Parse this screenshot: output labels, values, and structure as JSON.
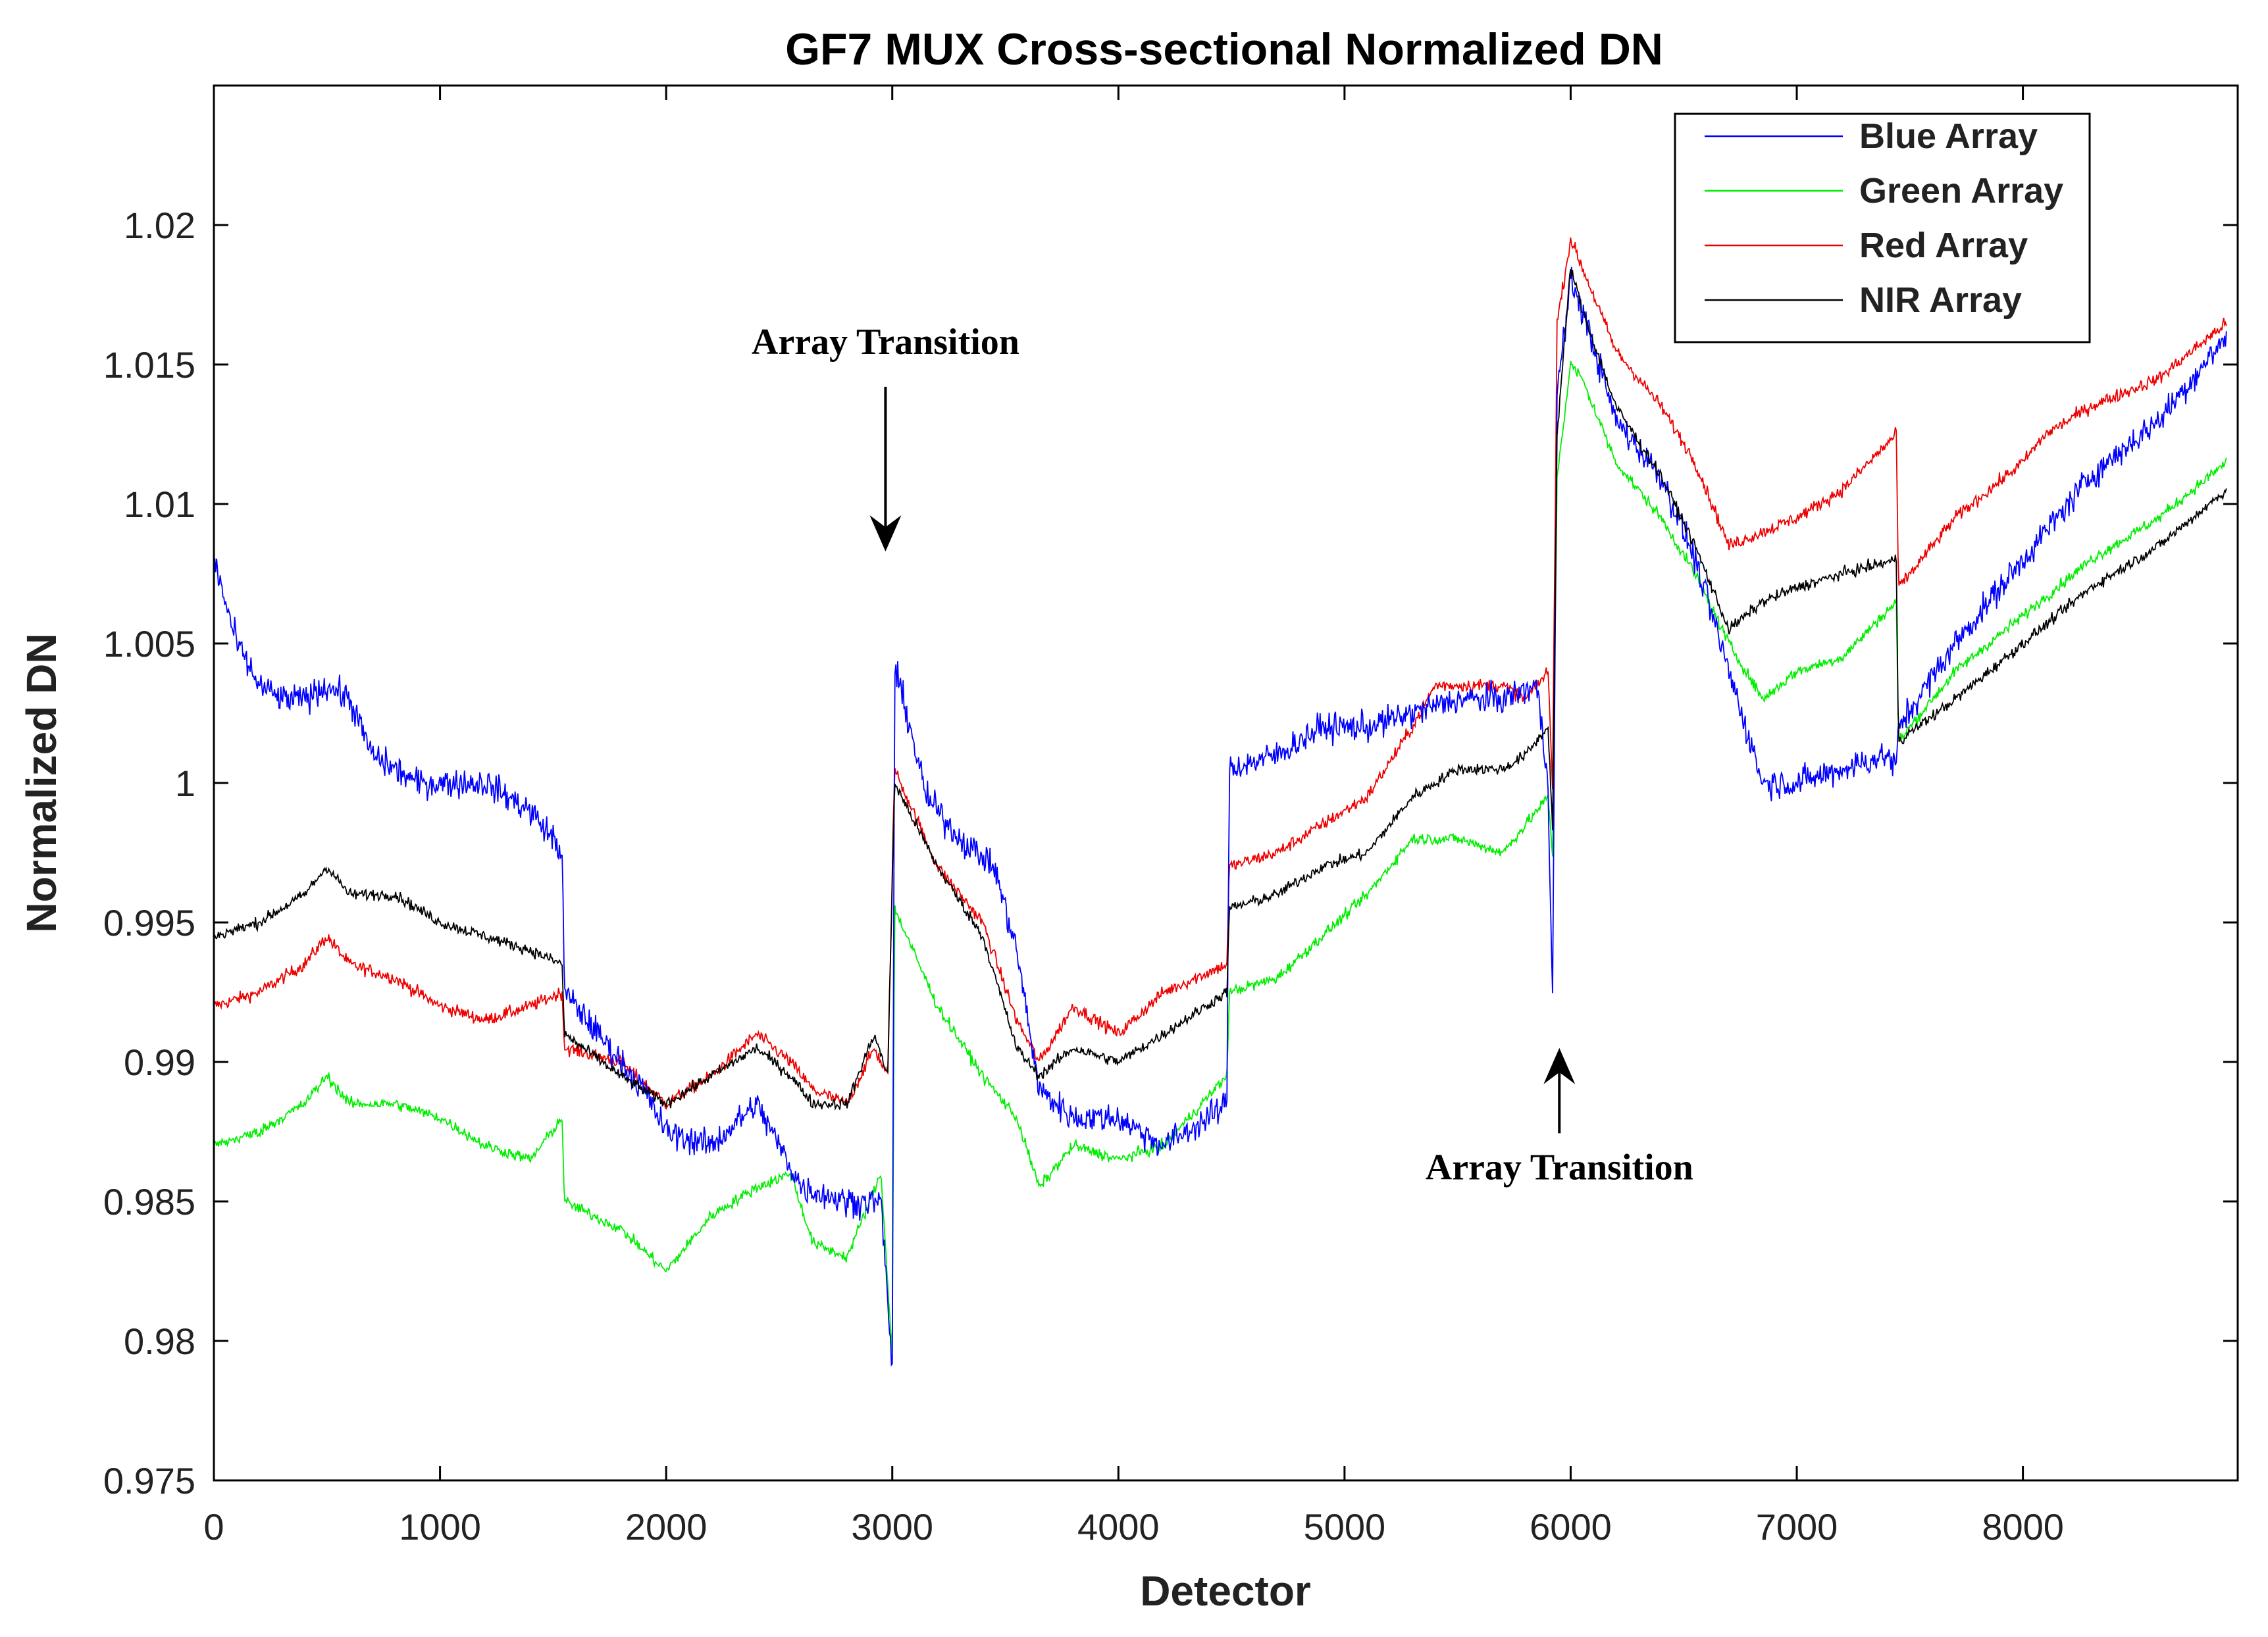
{
  "chart_data": {
    "type": "line",
    "title": "GF7 MUX Cross-sectional Normalized DN",
    "xlabel": "Detector",
    "ylabel": "Normalized DN",
    "xlim": [
      0,
      8950
    ],
    "ylim": [
      0.975,
      1.025
    ],
    "xticks": [
      0,
      1000,
      2000,
      3000,
      4000,
      5000,
      6000,
      7000,
      8000
    ],
    "xtick_labels": [
      "0",
      "1000",
      "2000",
      "3000",
      "4000",
      "5000",
      "6000",
      "7000",
      "8000"
    ],
    "yticks": [
      0.975,
      0.98,
      0.985,
      0.99,
      0.995,
      1.0,
      1.005,
      1.01,
      1.015,
      1.02
    ],
    "ytick_labels": [
      "0.975",
      "0.98",
      "0.985",
      "0.99",
      "0.995",
      "1",
      "1.005",
      "1.01",
      "1.015",
      "1.02"
    ],
    "legend_position": "top-right",
    "series": [
      {
        "name": "Blue Array",
        "color": "#0000ff",
        "x": [
          0,
          100,
          200,
          300,
          400,
          500,
          600,
          700,
          800,
          900,
          1000,
          1100,
          1200,
          1300,
          1400,
          1500,
          1540,
          1550,
          1700,
          1900,
          2000,
          2200,
          2400,
          2600,
          2800,
          2950,
          3000,
          3010,
          3050,
          3150,
          3300,
          3450,
          3550,
          3650,
          3800,
          4000,
          4200,
          4400,
          4480,
          4490,
          4700,
          4900,
          5100,
          5300,
          5500,
          5700,
          5850,
          5900,
          5920,
          5940,
          6000,
          6050,
          6200,
          6400,
          6550,
          6700,
          6850,
          7000,
          7200,
          7400,
          7440,
          7450,
          7700,
          8000,
          8300,
          8600,
          8900
        ],
        "values": [
          1.008,
          1.005,
          1.0035,
          1.003,
          1.003,
          1.0035,
          1.003,
          1.001,
          1.0005,
          1.0,
          1.0,
          1.0,
          1.0,
          0.9995,
          0.999,
          0.998,
          0.9975,
          0.9925,
          0.991,
          0.989,
          0.9875,
          0.987,
          0.9885,
          0.9855,
          0.985,
          0.985,
          0.979,
          1.004,
          1.003,
          0.9995,
          0.998,
          0.997,
          0.994,
          0.989,
          0.988,
          0.988,
          0.987,
          0.988,
          0.9885,
          1.0005,
          1.001,
          1.002,
          1.002,
          1.0025,
          1.003,
          1.003,
          1.0035,
          1.0,
          0.9925,
          1.014,
          1.018,
          1.017,
          1.013,
          1.011,
          1.008,
          1.004,
          1.0,
          1.0,
          1.0005,
          1.001,
          1.0005,
          1.002,
          1.005,
          1.008,
          1.011,
          1.013,
          1.016
        ]
      },
      {
        "name": "Green Array",
        "color": "#00ee00",
        "x": [
          0,
          200,
          400,
          500,
          600,
          800,
          1000,
          1200,
          1400,
          1540,
          1550,
          1800,
          2000,
          2200,
          2400,
          2550,
          2650,
          2800,
          2950,
          3000,
          3010,
          3200,
          3400,
          3550,
          3650,
          3800,
          4000,
          4200,
          4480,
          4490,
          4700,
          4900,
          5100,
          5300,
          5500,
          5700,
          5800,
          5900,
          5920,
          5940,
          6000,
          6050,
          6200,
          6400,
          6550,
          6700,
          6850,
          7000,
          7200,
          7440,
          7450,
          7700,
          8000,
          8300,
          8600,
          8900
        ],
        "values": [
          0.987,
          0.9875,
          0.9885,
          0.9895,
          0.9885,
          0.9885,
          0.988,
          0.987,
          0.9865,
          0.988,
          0.985,
          0.984,
          0.9825,
          0.9845,
          0.9855,
          0.986,
          0.9835,
          0.983,
          0.986,
          0.9795,
          0.9955,
          0.992,
          0.9895,
          0.988,
          0.9855,
          0.987,
          0.9865,
          0.987,
          0.9895,
          0.9925,
          0.993,
          0.9945,
          0.996,
          0.998,
          0.998,
          0.9975,
          0.9985,
          0.9995,
          0.9975,
          1.011,
          1.015,
          1.0145,
          1.0115,
          1.0095,
          1.0075,
          1.005,
          1.003,
          1.004,
          1.0045,
          1.0065,
          1.0015,
          1.004,
          1.006,
          1.008,
          1.0095,
          1.0115
        ]
      },
      {
        "name": "Red Array",
        "color": "#ee0000",
        "x": [
          0,
          200,
          400,
          500,
          600,
          800,
          1000,
          1200,
          1400,
          1540,
          1550,
          1800,
          2000,
          2200,
          2400,
          2550,
          2650,
          2800,
          2920,
          2980,
          3010,
          3200,
          3400,
          3550,
          3650,
          3800,
          4000,
          4200,
          4480,
          4490,
          4700,
          4900,
          5100,
          5300,
          5400,
          5500,
          5700,
          5800,
          5900,
          5920,
          5940,
          6000,
          6050,
          6200,
          6400,
          6550,
          6700,
          6850,
          7000,
          7200,
          7440,
          7450,
          7700,
          8000,
          8100,
          8200,
          8300,
          8600,
          8900
        ],
        "values": [
          0.992,
          0.9925,
          0.9935,
          0.9945,
          0.9935,
          0.993,
          0.992,
          0.9915,
          0.992,
          0.9925,
          0.9905,
          0.99,
          0.9885,
          0.9895,
          0.991,
          0.99,
          0.989,
          0.9885,
          0.9905,
          0.9895,
          1.0005,
          0.997,
          0.995,
          0.9915,
          0.99,
          0.992,
          0.991,
          0.9925,
          0.9935,
          0.997,
          0.9975,
          0.9985,
          0.9995,
          1.002,
          1.0035,
          1.0035,
          1.0035,
          1.003,
          1.004,
          1.0,
          1.0165,
          1.0195,
          1.0185,
          1.0155,
          1.0135,
          1.0115,
          1.0085,
          1.009,
          1.0095,
          1.0105,
          1.0125,
          1.007,
          1.0095,
          1.0115,
          1.0125,
          1.013,
          1.0135,
          1.0145,
          1.0165
        ]
      },
      {
        "name": "NIR Array",
        "color": "#000000",
        "x": [
          0,
          200,
          400,
          500,
          600,
          800,
          1000,
          1200,
          1400,
          1540,
          1550,
          1800,
          2000,
          2200,
          2400,
          2550,
          2650,
          2800,
          2920,
          2980,
          3010,
          3200,
          3400,
          3550,
          3650,
          3800,
          4000,
          4200,
          4480,
          4490,
          4700,
          4900,
          5100,
          5300,
          5500,
          5700,
          5800,
          5900,
          5920,
          5940,
          6000,
          6050,
          6200,
          6400,
          6550,
          6700,
          6850,
          7000,
          7200,
          7440,
          7450,
          7700,
          8000,
          8300,
          8600,
          8900
        ],
        "values": [
          0.9945,
          0.995,
          0.996,
          0.997,
          0.996,
          0.996,
          0.995,
          0.9945,
          0.994,
          0.9935,
          0.991,
          0.9895,
          0.9885,
          0.9895,
          0.9905,
          0.9895,
          0.9885,
          0.9885,
          0.991,
          0.9895,
          1.0,
          0.997,
          0.9945,
          0.9905,
          0.9895,
          0.9905,
          0.99,
          0.991,
          0.9925,
          0.9955,
          0.996,
          0.997,
          0.9975,
          0.9995,
          1.0005,
          1.0005,
          1.001,
          1.002,
          0.9985,
          1.0125,
          1.0185,
          1.017,
          1.0135,
          1.011,
          1.0085,
          1.0055,
          1.0065,
          1.007,
          1.0075,
          1.008,
          1.0015,
          1.003,
          1.005,
          1.007,
          1.0085,
          1.0105
        ]
      }
    ],
    "annotations": [
      {
        "text": "Array Transition",
        "x": 2970,
        "y": 1.0142,
        "arrow_to": [
          2970,
          1.0083
        ],
        "direction": "down"
      },
      {
        "text": "Array Transition",
        "x": 5950,
        "y": 0.9865,
        "arrow_to": [
          5950,
          0.9905
        ],
        "direction": "up"
      }
    ]
  }
}
